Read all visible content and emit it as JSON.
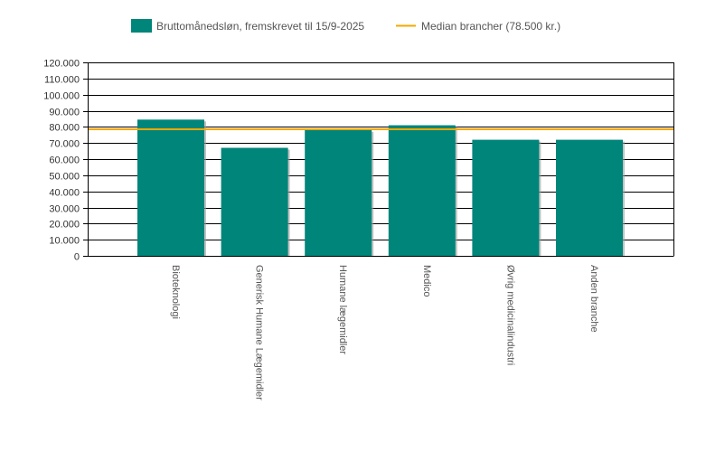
{
  "chart_data": {
    "type": "bar",
    "categories": [
      "Bioteknologi",
      "Generisk Humane Lægemidler",
      "Humane lægemidler",
      "Medico",
      "Øvrig medicinalindustri",
      "Anden branche"
    ],
    "series": [
      {
        "name": "Bruttomånedsløn, fremskrevet til 15/9-2025",
        "values": [
          84500,
          67000,
          78000,
          81000,
          72000,
          72000
        ],
        "color": "#00857a"
      }
    ],
    "reference_line": {
      "name": "Median brancher (78.500 kr.)",
      "value": 78500,
      "color": "#f5a800"
    },
    "title": "",
    "xlabel": "",
    "ylabel": "",
    "ylim": [
      0,
      120000
    ],
    "yticks": [
      "0",
      "10.000",
      "20.000",
      "30.000",
      "40.000",
      "50.000",
      "60.000",
      "70.000",
      "80.000",
      "90.000",
      "100.000",
      "110.000",
      "120.000"
    ],
    "grid": true,
    "legend_position": "top-center"
  }
}
